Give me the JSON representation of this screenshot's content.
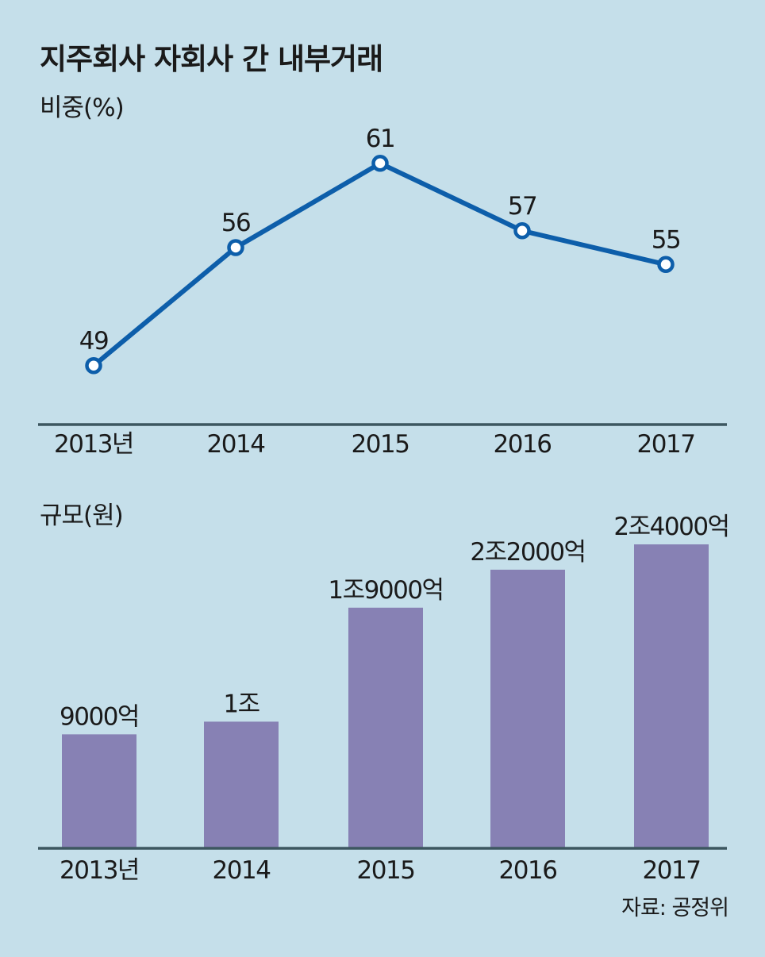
{
  "title": "지주회사 자회사 간 내부거래",
  "source": "자료: 공정위",
  "colors": {
    "background": "#c5dfea",
    "line": "#0d5eaa",
    "bar": "#8781b4",
    "axis": "#3d5760"
  },
  "chart_data": [
    {
      "type": "line",
      "title": "비중(%)",
      "categories": [
        "2013년",
        "2014",
        "2015",
        "2016",
        "2017"
      ],
      "series": [
        {
          "values": [
            49,
            56,
            61,
            57,
            55
          ]
        }
      ],
      "data_labels": [
        "49",
        "56",
        "61",
        "57",
        "55"
      ],
      "ylim": [
        44,
        64
      ]
    },
    {
      "type": "bar",
      "title": "규모(원)",
      "categories": [
        "2013년",
        "2014",
        "2015",
        "2016",
        "2017"
      ],
      "values": [
        9000,
        10000,
        19000,
        22000,
        24000
      ],
      "unit": "억원",
      "data_labels": [
        "9000억",
        "1조",
        "1조9000억",
        "2조2000억",
        "2조4000억"
      ],
      "ylim": [
        0,
        24000
      ]
    }
  ]
}
